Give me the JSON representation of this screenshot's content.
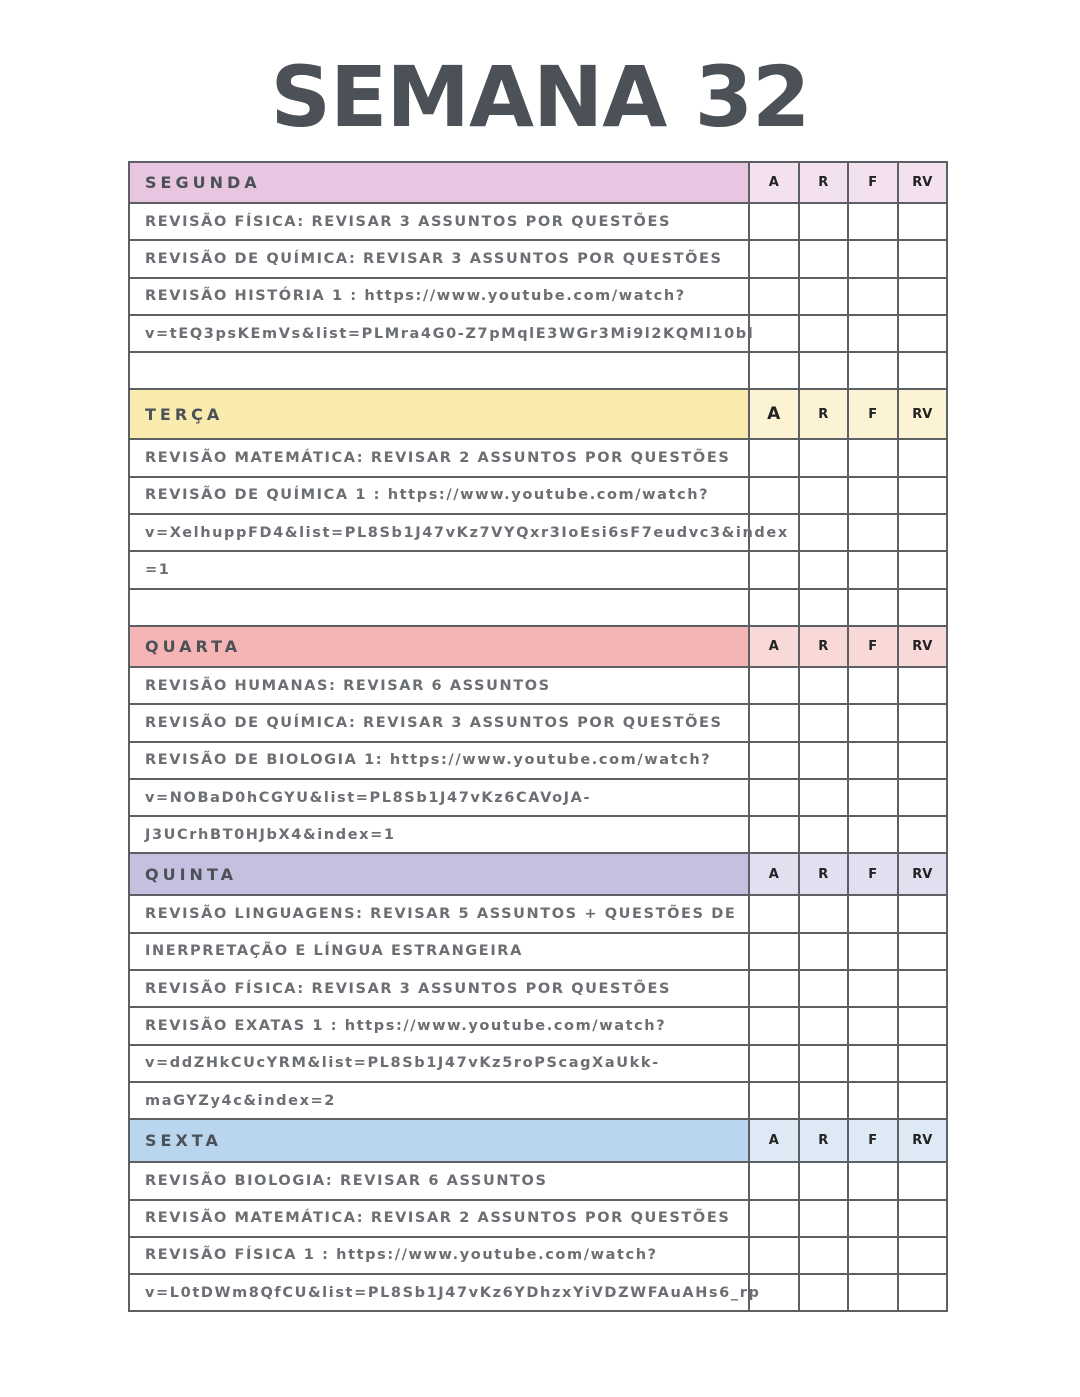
{
  "title": "SEMANA 32",
  "sections": [
    {
      "day": "SEGUNDA",
      "columns": [
        "A",
        "R",
        "F",
        "RV"
      ],
      "rows": [
        "REVISÃO FÍSICA: REVISAR 3 ASSUNTOS POR QUESTÕES",
        "REVISÃO DE QUÍMICA: REVISAR 3 ASSUNTOS POR QUESTÕES",
        "REVISÃO HISTÓRIA 1 : https://www.youtube.com/watch?",
        "v=tEQ3psKEmVs&list=PLMra4G0-Z7pMqlE3WGr3Mi9l2KQMl10bl"
      ]
    },
    {
      "day": "TERÇA",
      "columns": [
        "A",
        "R",
        "F",
        "RV"
      ],
      "rows": [
        "REVISÃO MATEMÁTICA: REVISAR 2 ASSUNTOS POR QUESTÕES",
        "REVISÃO DE QUÍMICA 1 : https://www.youtube.com/watch?",
        "v=XelhuppFD4&list=PL8Sb1J47vKz7VYQxr3IoEsi6sF7eudvc3&index",
        "=1"
      ]
    },
    {
      "day": "QUARTA",
      "columns": [
        "A",
        "R",
        "F",
        "RV"
      ],
      "rows": [
        "REVISÃO HUMANAS: REVISAR 6 ASSUNTOS",
        "REVISÃO DE QUÍMICA: REVISAR 3 ASSUNTOS POR QUESTÕES",
        "REVISÃO DE BIOLOGIA 1: https://www.youtube.com/watch?",
        "v=NOBaD0hCGYU&list=PL8Sb1J47vKz6CAVoJA-",
        "J3UCrhBT0HJbX4&index=1"
      ]
    },
    {
      "day": "QUINTA",
      "columns": [
        "A",
        "R",
        "F",
        "RV"
      ],
      "rows": [
        "REVISÃO LINGUAGENS: REVISAR 5 ASSUNTOS + QUESTÕES DE",
        "INERPRETAÇÃO E LÍNGUA ESTRANGEIRA",
        "REVISÃO FÍSICA: REVISAR 3 ASSUNTOS POR QUESTÕES",
        "REVISÃO EXATAS 1 : https://www.youtube.com/watch?",
        "v=ddZHkCUcYRM&list=PL8Sb1J47vKz5roPScagXaUkk-",
        "maGYZy4c&index=2"
      ]
    },
    {
      "day": "SEXTA",
      "columns": [
        "A",
        "R",
        "F",
        "RV"
      ],
      "rows": [
        "REVISÃO BIOLOGIA: REVISAR 6 ASSUNTOS",
        "REVISÃO MATEMÁTICA: REVISAR 2 ASSUNTOS POR QUESTÕES",
        "REVISÃO FÍSICA 1 : https://www.youtube.com/watch?",
        "v=L0tDWm8QfCU&list=PL8Sb1J47vKz6YDhzxYiVDZWFAuAHs6_rp"
      ]
    }
  ]
}
